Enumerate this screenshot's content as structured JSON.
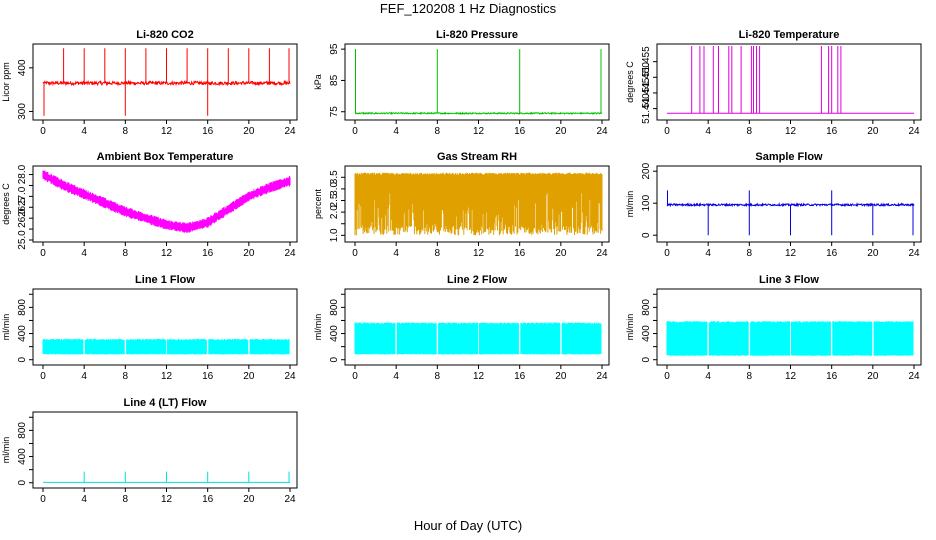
{
  "figure": {
    "title": "FEF_120208  1 Hz Diagnostics",
    "xlabel": "Hour of Day (UTC)"
  },
  "chart_data": [
    {
      "type": "line",
      "title": "Li-820 CO2",
      "ylabel": "Licor ppm",
      "color": "#ff0000",
      "xlim": [
        0,
        24
      ],
      "ylim": [
        285,
        450
      ],
      "x_ticks": [
        0,
        4,
        8,
        12,
        16,
        20,
        24
      ],
      "x_tick_labels": [
        "0",
        "4",
        "8",
        "12",
        "16",
        "20",
        "24"
      ],
      "y_ticks": [
        300,
        400
      ],
      "y_tick_labels": [
        "300",
        "400"
      ],
      "baseline": 365,
      "noise": 4,
      "spikes_up": [
        2,
        4,
        6,
        8,
        10,
        12,
        14,
        16,
        18,
        20,
        22,
        24
      ],
      "spike_up_value": 445,
      "spikes_down": [
        0.1,
        8,
        16
      ],
      "spike_down_value": 290
    },
    {
      "type": "line",
      "title": "Li-820 Pressure",
      "ylabel": "kPa",
      "color": "#00c000",
      "xlim": [
        0,
        24
      ],
      "ylim": [
        73,
        96
      ],
      "x_ticks": [
        0,
        4,
        8,
        12,
        16,
        20,
        24
      ],
      "x_tick_labels": [
        "0",
        "4",
        "8",
        "12",
        "16",
        "20",
        "24"
      ],
      "y_ticks": [
        75,
        85,
        95
      ],
      "y_tick_labels": [
        "75",
        "85",
        "95"
      ],
      "baseline": 74.5,
      "noise": 0.2,
      "spikes_up": [
        0.05,
        8,
        16,
        24
      ],
      "spike_up_value": 95
    },
    {
      "type": "line",
      "title": "Li-820 Temperature",
      "ylabel": "degrees C",
      "color": "#e000e0",
      "xlim": [
        0,
        24
      ],
      "ylim": [
        51.437,
        51.46
      ],
      "x_ticks": [
        0,
        4,
        8,
        12,
        16,
        20,
        24
      ],
      "x_tick_labels": [
        "0",
        "4",
        "8",
        "12",
        "16",
        "20",
        "24"
      ],
      "y_ticks": [
        51.44,
        51.445,
        51.45,
        51.455
      ],
      "y_tick_labels": [
        "51.440",
        "51.445",
        "51.450",
        "51.455"
      ],
      "baseline": 51.4385,
      "spikes_up": [
        2.4,
        3.2,
        3.6,
        4.5,
        5,
        6,
        6.3,
        7.2,
        8.2,
        8.4,
        8.7,
        9,
        15,
        15.7,
        16,
        16.6,
        16.9
      ],
      "spike_up_value": 51.46
    },
    {
      "type": "line",
      "title": "Ambient Box Temperature",
      "ylabel": "degrees C",
      "color": "#ff00ff",
      "xlim": [
        0,
        24
      ],
      "ylim": [
        25,
        28.3
      ],
      "x_ticks": [
        0,
        4,
        8,
        12,
        16,
        20,
        24
      ],
      "x_tick_labels": [
        "0",
        "4",
        "8",
        "12",
        "16",
        "20",
        "24"
      ],
      "y_ticks": [
        25,
        25.5,
        26,
        26.5,
        27,
        27.5,
        28
      ],
      "y_tick_labels": [
        "25.0",
        "",
        "26.0",
        "26.5",
        "27.0",
        "",
        "28.0"
      ],
      "trend_x": [
        0,
        2,
        4,
        6,
        8,
        10,
        12,
        14,
        16,
        18,
        20,
        22,
        24
      ],
      "trend_y": [
        28,
        27.5,
        27.1,
        26.7,
        26.3,
        26,
        25.7,
        25.55,
        25.8,
        26.4,
        27.0,
        27.4,
        27.7
      ],
      "band": 0.4
    },
    {
      "type": "line",
      "title": "Gas Stream RH",
      "ylabel": "percent",
      "color": "#e0a000",
      "xlim": [
        0,
        24
      ],
      "ylim": [
        0.8,
        3.9
      ],
      "x_ticks": [
        0,
        4,
        8,
        12,
        16,
        20,
        24
      ],
      "x_tick_labels": [
        "0",
        "4",
        "8",
        "12",
        "16",
        "20",
        "24"
      ],
      "y_ticks": [
        1,
        1.5,
        2,
        2.5,
        3,
        3.5
      ],
      "y_tick_labels": [
        "1.0",
        "",
        "2.0",
        "2.5",
        "3.0",
        "3.5"
      ],
      "high": 3.7,
      "low": 1.0
    },
    {
      "type": "line",
      "title": "Sample Flow",
      "ylabel": "ml/min",
      "color": "#0000e0",
      "xlim": [
        0,
        24
      ],
      "ylim": [
        -15,
        210
      ],
      "x_ticks": [
        0,
        4,
        8,
        12,
        16,
        20,
        24
      ],
      "x_tick_labels": [
        "0",
        "4",
        "8",
        "12",
        "16",
        "20",
        "24"
      ],
      "y_ticks": [
        0,
        100,
        200
      ],
      "y_tick_labels": [
        "0",
        "100",
        "200"
      ],
      "baseline": 95,
      "noise": 3,
      "spikes_up": [
        0.05,
        8,
        16
      ],
      "spike_up_value": 140,
      "spikes_down": [
        4,
        8,
        12,
        16,
        20,
        24
      ],
      "spike_down_value": 0
    },
    {
      "type": "line",
      "title": "Line 1 Flow",
      "ylabel": "ml/min",
      "color": "#00ffff",
      "xlim": [
        0,
        24
      ],
      "ylim": [
        -50,
        1050
      ],
      "x_ticks": [
        0,
        4,
        8,
        12,
        16,
        20,
        24
      ],
      "x_tick_labels": [
        "0",
        "4",
        "8",
        "12",
        "16",
        "20",
        "24"
      ],
      "y_ticks": [
        0,
        200,
        400,
        600,
        800,
        1000
      ],
      "y_tick_labels": [
        "0",
        "",
        "400",
        "",
        "800",
        ""
      ],
      "band_low": 80,
      "band_high": 320,
      "gaps": [
        4,
        8,
        12,
        16,
        20,
        24
      ]
    },
    {
      "type": "line",
      "title": "Line 2 Flow",
      "ylabel": "ml/min",
      "color": "#00ffff",
      "xlim": [
        0,
        24
      ],
      "ylim": [
        -50,
        1050
      ],
      "x_ticks": [
        0,
        4,
        8,
        12,
        16,
        20,
        24
      ],
      "x_tick_labels": [
        "0",
        "4",
        "8",
        "12",
        "16",
        "20",
        "24"
      ],
      "y_ticks": [
        0,
        200,
        400,
        600,
        800,
        1000
      ],
      "y_tick_labels": [
        "0",
        "",
        "400",
        "",
        "800",
        ""
      ],
      "band_low": 80,
      "band_high": 570,
      "gaps": [
        4,
        8,
        12,
        16,
        20,
        24
      ]
    },
    {
      "type": "line",
      "title": "Line 3 Flow",
      "ylabel": "ml/min",
      "color": "#00ffff",
      "xlim": [
        0,
        24
      ],
      "ylim": [
        -50,
        1050
      ],
      "x_ticks": [
        0,
        4,
        8,
        12,
        16,
        20,
        24
      ],
      "x_tick_labels": [
        "0",
        "4",
        "8",
        "12",
        "16",
        "20",
        "24"
      ],
      "y_ticks": [
        0,
        200,
        400,
        600,
        800,
        1000
      ],
      "y_tick_labels": [
        "0",
        "",
        "400",
        "",
        "800",
        ""
      ],
      "band_low": 60,
      "band_high": 590,
      "gaps": [
        4,
        8,
        12,
        16,
        20,
        24
      ]
    },
    {
      "type": "line",
      "title": "Line 4 (LT) Flow",
      "ylabel": "ml/min",
      "color": "#00e0e0",
      "xlim": [
        0,
        24
      ],
      "ylim": [
        -50,
        1050
      ],
      "x_ticks": [
        0,
        4,
        8,
        12,
        16,
        20,
        24
      ],
      "x_tick_labels": [
        "0",
        "4",
        "8",
        "12",
        "16",
        "20",
        "24"
      ],
      "y_ticks": [
        0,
        200,
        400,
        600,
        800,
        1000
      ],
      "y_tick_labels": [
        "0",
        "",
        "400",
        "",
        "800",
        ""
      ],
      "baseline": 5,
      "spikes_up": [
        4,
        8,
        12,
        16,
        20,
        24
      ],
      "spike_up_value": 170
    }
  ]
}
